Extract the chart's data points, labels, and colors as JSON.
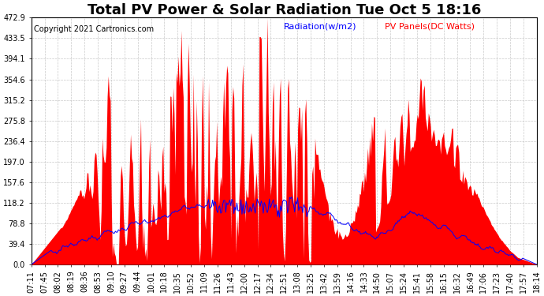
{
  "title": "Total PV Power & Solar Radiation Tue Oct 5 18:16",
  "copyright": "Copyright 2021 Cartronics.com",
  "legend_radiation": "Radiation(w/m2)",
  "legend_pv": "PV Panels(DC Watts)",
  "legend_radiation_color": "blue",
  "legend_pv_color": "red",
  "ymin": 0.0,
  "ymax": 472.9,
  "yticks": [
    0.0,
    39.4,
    78.8,
    118.2,
    157.6,
    197.0,
    236.4,
    275.8,
    315.2,
    354.6,
    394.1,
    433.5,
    472.9
  ],
  "background_color": "#ffffff",
  "plot_bg_color": "#ffffff",
  "grid_color": "#bbbbbb",
  "fill_pv_color": "red",
  "line_radiation_color": "blue",
  "title_fontsize": 13,
  "copyright_fontsize": 7,
  "tick_fontsize": 7,
  "legend_fontsize": 8,
  "time_labels": [
    "07:11",
    "07:45",
    "08:02",
    "08:19",
    "08:36",
    "08:53",
    "09:10",
    "09:27",
    "09:44",
    "10:01",
    "10:18",
    "10:35",
    "10:52",
    "11:09",
    "11:26",
    "11:43",
    "12:00",
    "12:17",
    "12:34",
    "12:51",
    "13:08",
    "13:25",
    "13:42",
    "13:59",
    "14:16",
    "14:33",
    "14:50",
    "15:07",
    "15:24",
    "15:41",
    "15:58",
    "16:15",
    "16:32",
    "16:49",
    "17:06",
    "17:23",
    "17:40",
    "17:57",
    "18:14"
  ]
}
